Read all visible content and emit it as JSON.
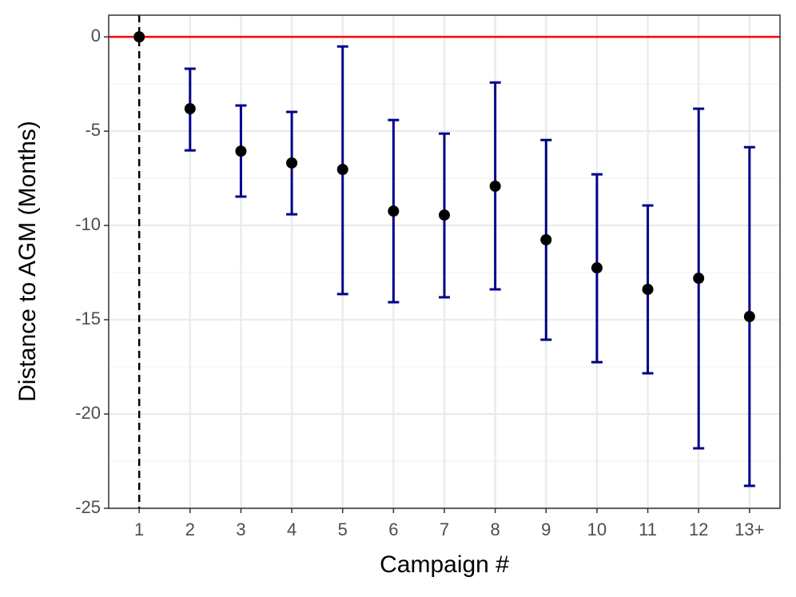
{
  "chart_data": {
    "type": "errorbar",
    "x_label": "Campaign #",
    "y_label": "Distance to AGM (Months)",
    "categories": [
      "1",
      "2",
      "3",
      "4",
      "5",
      "6",
      "7",
      "8",
      "9",
      "10",
      "11",
      "12",
      "13+"
    ],
    "series": [
      {
        "color": "#000000",
        "error_color": "#00008b",
        "values": [
          0,
          -3.81,
          -6.06,
          -6.69,
          -7.03,
          -9.24,
          -9.45,
          -7.92,
          -10.76,
          -12.25,
          -13.39,
          -12.8,
          -14.83
        ],
        "upper": [
          null,
          -1.69,
          -3.64,
          -3.98,
          -0.51,
          -4.41,
          -5.13,
          -2.42,
          -5.47,
          -7.29,
          -8.94,
          -3.81,
          -5.85
        ],
        "lower": [
          null,
          -6.02,
          -8.47,
          -9.41,
          -13.64,
          -14.07,
          -13.81,
          -13.39,
          -16.06,
          -17.25,
          -17.84,
          -21.82,
          -23.81
        ]
      }
    ],
    "ylim": [
      -25,
      1.15
    ],
    "yticks": [
      0,
      -5,
      -10,
      -15,
      -20,
      -25
    ],
    "grid": true,
    "hline": 0,
    "hline_color": "#ff0000",
    "vline": "1"
  }
}
